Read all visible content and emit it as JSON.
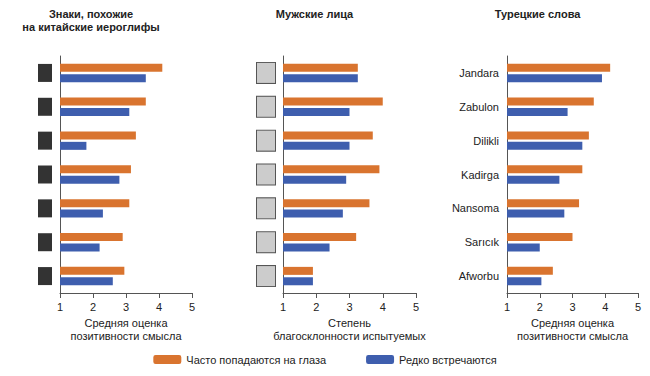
{
  "chart_data": [
    {
      "type": "bar",
      "orientation": "horizontal",
      "title": "Знаки, похожие\nна китайские иероглифы",
      "x_label": "Средняя оценка\nпозитивности смысла",
      "categories": [
        null,
        null,
        null,
        null,
        null,
        null,
        null
      ],
      "series": [
        {
          "name": "Часто попадаются на глаза",
          "color": "#d9742f",
          "values": [
            4.1,
            3.6,
            3.3,
            3.15,
            3.1,
            2.9,
            2.95
          ]
        },
        {
          "name": "Редко встречаются",
          "color": "#3e5eae",
          "values": [
            3.6,
            3.1,
            1.8,
            2.8,
            2.3,
            2.2,
            2.6
          ]
        }
      ],
      "xlim": [
        1,
        5
      ],
      "xticks": [
        1,
        2,
        3,
        4,
        5
      ],
      "grid": false,
      "legend": "bottom"
    },
    {
      "type": "bar",
      "orientation": "horizontal",
      "title": "Мужские лица",
      "x_label": "Степень\nблагосклонности испытуемых",
      "categories": [
        null,
        null,
        null,
        null,
        null,
        null,
        null
      ],
      "series": [
        {
          "name": "Часто попадаются на глаза",
          "color": "#d9742f",
          "values": [
            3.25,
            4.0,
            3.7,
            3.9,
            3.6,
            3.2,
            1.9
          ]
        },
        {
          "name": "Редко встречаются",
          "color": "#3e5eae",
          "values": [
            3.25,
            3.0,
            3.0,
            2.9,
            2.8,
            2.4,
            1.9
          ]
        }
      ],
      "xlim": [
        1,
        5
      ],
      "xticks": [
        1,
        2,
        3,
        4,
        5
      ],
      "grid": false,
      "legend": "bottom"
    },
    {
      "type": "bar",
      "orientation": "horizontal",
      "title": "Турецкие слова",
      "x_label": "Средняя оценка\nпозитивности смысла",
      "categories": [
        "Jandara",
        "Zabulon",
        "Dilikli",
        "Kadirga",
        "Nansoma",
        "Sarıcık",
        "Afworbu"
      ],
      "series": [
        {
          "name": "Часто попадаются на глаза",
          "color": "#d9742f",
          "values": [
            4.15,
            3.65,
            3.5,
            3.3,
            3.2,
            3.0,
            2.4
          ]
        },
        {
          "name": "Редко встречаются",
          "color": "#3e5eae",
          "values": [
            3.9,
            2.85,
            3.3,
            2.6,
            2.75,
            2.0,
            2.05
          ]
        }
      ],
      "xlim": [
        1,
        5
      ],
      "xticks": [
        1,
        2,
        3,
        4,
        5
      ],
      "grid": false,
      "legend": "bottom"
    }
  ]
}
